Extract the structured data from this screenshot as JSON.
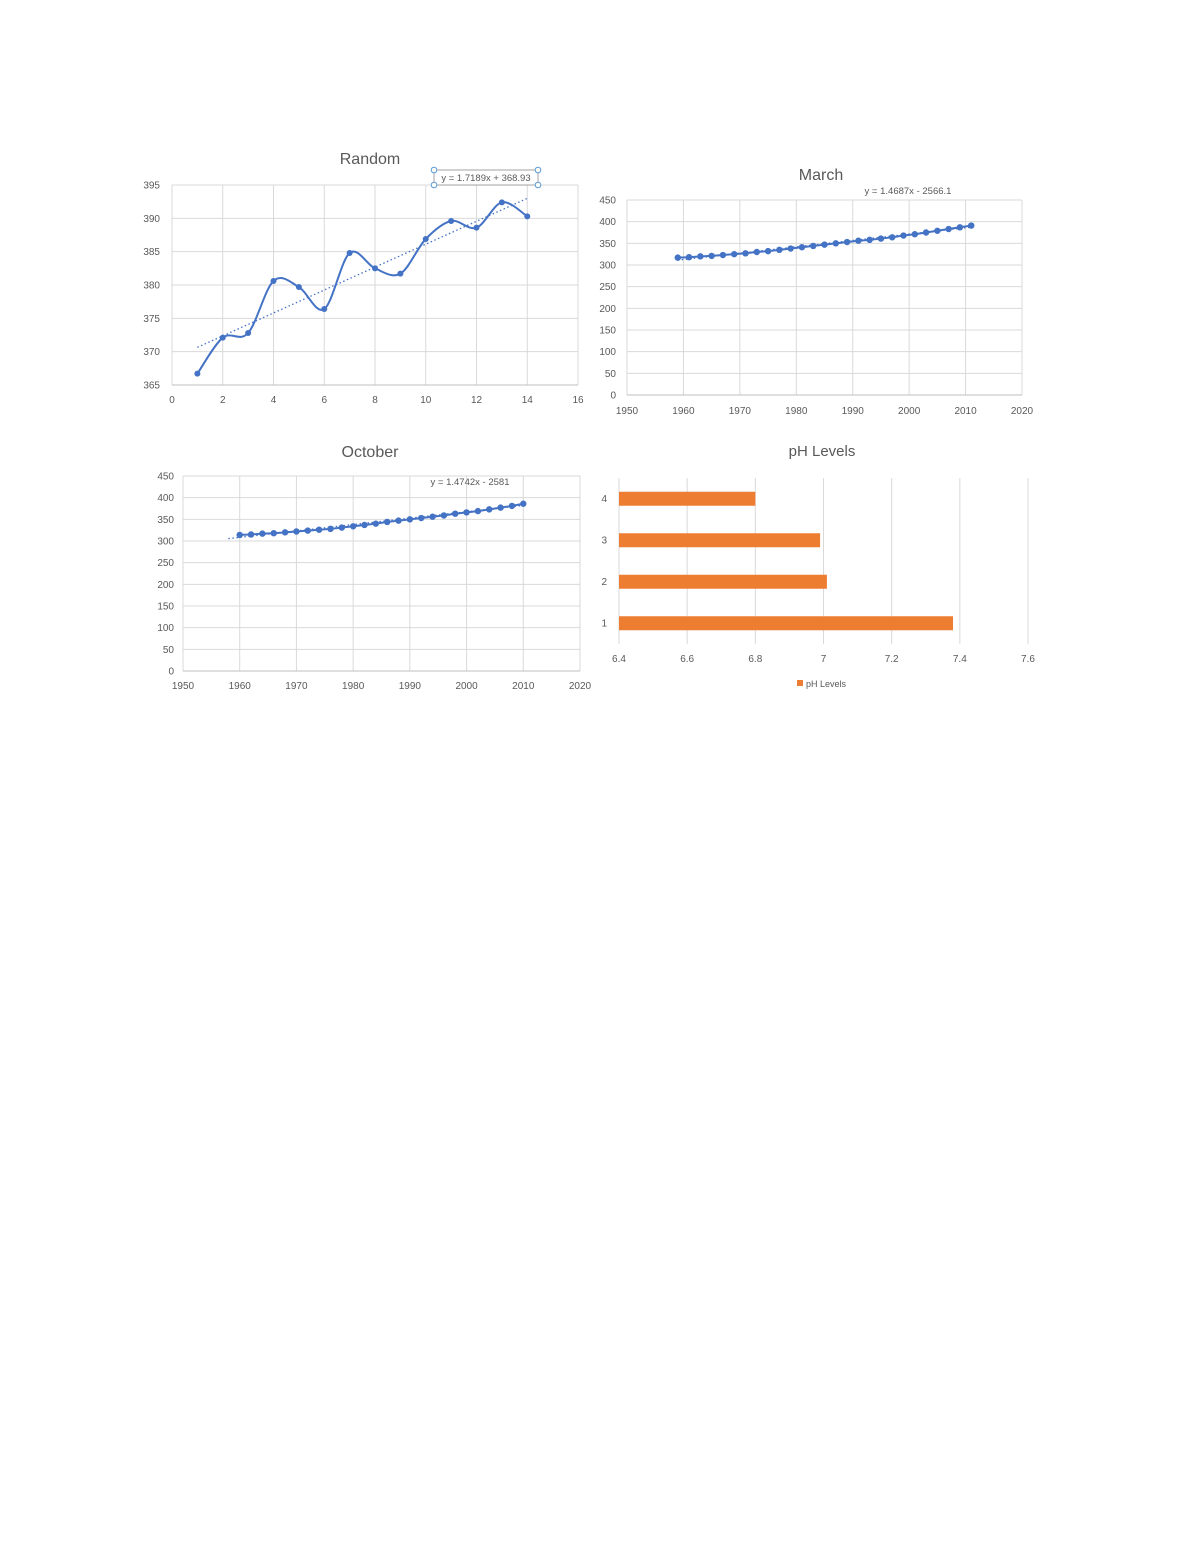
{
  "chart_data": [
    {
      "id": "random",
      "type": "line",
      "title": "Random",
      "xlabel": "",
      "ylabel": "",
      "xlim": [
        0,
        16
      ],
      "ylim": [
        365,
        395
      ],
      "x_ticks": [
        "0",
        "2",
        "4",
        "6",
        "8",
        "10",
        "12",
        "14",
        "16"
      ],
      "y_ticks": [
        "365",
        "370",
        "375",
        "380",
        "385",
        "390",
        "395"
      ],
      "grid": true,
      "smooth": true,
      "series": [
        {
          "x": [
            1,
            2,
            3,
            4,
            5,
            6,
            7,
            8,
            9,
            10,
            11,
            12,
            13,
            14
          ],
          "values": [
            366.7,
            372.1,
            372.8,
            380.6,
            379.7,
            376.4,
            384.8,
            382.5,
            381.7,
            386.9,
            389.6,
            388.6,
            392.4,
            390.3
          ]
        }
      ],
      "trendline": {
        "equation": "y = 1.7189x + 368.93",
        "slope": 1.7189,
        "intercept": 368.93,
        "x_range": [
          1,
          14
        ],
        "style": "dotted"
      },
      "colors": {
        "series": "#4472c4"
      }
    },
    {
      "id": "march",
      "type": "scatter",
      "title": "March",
      "xlabel": "",
      "ylabel": "",
      "xlim": [
        1950,
        2020
      ],
      "ylim": [
        0,
        450
      ],
      "x_ticks": [
        "1950",
        "1960",
        "1970",
        "1980",
        "1990",
        "2000",
        "2010",
        "2020"
      ],
      "y_ticks": [
        "0",
        "50",
        "100",
        "150",
        "200",
        "250",
        "300",
        "350",
        "400",
        "450"
      ],
      "grid": true,
      "series": [
        {
          "x": [
            1959,
            1961,
            1963,
            1965,
            1967,
            1969,
            1971,
            1973,
            1975,
            1977,
            1979,
            1981,
            1983,
            1985,
            1987,
            1989,
            1991,
            1993,
            1995,
            1997,
            1999,
            2001,
            2003,
            2005,
            2007,
            2009,
            2011
          ],
          "values": [
            317,
            318,
            320,
            321,
            323,
            325,
            327,
            330,
            332,
            335,
            338,
            341,
            344,
            347,
            350,
            353,
            356,
            358,
            361,
            364,
            368,
            371,
            375,
            379,
            383,
            387,
            391
          ]
        }
      ],
      "trendline": {
        "equation": "y = 1.4687x - 2566.1",
        "slope": 1.4687,
        "intercept": -2566.1,
        "x_range": [
          1959,
          2011
        ],
        "style": "dotted"
      },
      "colors": {
        "series": "#4472c4"
      }
    },
    {
      "id": "october",
      "type": "scatter",
      "title": "October",
      "xlabel": "",
      "ylabel": "",
      "xlim": [
        1950,
        2020
      ],
      "ylim": [
        0,
        450
      ],
      "x_ticks": [
        "1950",
        "1960",
        "1970",
        "1980",
        "1990",
        "2000",
        "2010",
        "2020"
      ],
      "y_ticks": [
        "0",
        "50",
        "100",
        "150",
        "200",
        "250",
        "300",
        "350",
        "400",
        "450"
      ],
      "grid": true,
      "series": [
        {
          "x": [
            1960,
            1962,
            1964,
            1966,
            1968,
            1970,
            1972,
            1974,
            1976,
            1978,
            1980,
            1982,
            1984,
            1986,
            1988,
            1990,
            1992,
            1994,
            1996,
            1998,
            2000,
            2002,
            2004,
            2006,
            2008,
            2010
          ],
          "values": [
            314,
            315,
            317,
            318,
            320,
            322,
            324,
            326,
            328,
            331,
            334,
            337,
            340,
            344,
            347,
            350,
            353,
            356,
            359,
            363,
            366,
            369,
            373,
            377,
            381,
            386
          ]
        }
      ],
      "trendline": {
        "equation": "y = 1.4742x - 2581",
        "slope": 1.4742,
        "intercept": -2581,
        "x_range": [
          1958,
          2010
        ],
        "style": "dotted"
      },
      "colors": {
        "series": "#4472c4"
      }
    },
    {
      "id": "ph",
      "type": "bar",
      "orientation": "horizontal",
      "title": "pH Levels",
      "xlabel": "",
      "ylabel": "",
      "categories": [
        "1",
        "2",
        "3",
        "4"
      ],
      "xlim": [
        6.4,
        7.6
      ],
      "x_ticks": [
        "6.4",
        "6.6",
        "6.8",
        "7",
        "7.2",
        "7.4",
        "7.6"
      ],
      "grid": true,
      "legend": "bottom",
      "series": [
        {
          "name": "pH Levels",
          "values": [
            7.38,
            7.01,
            6.99,
            6.8
          ]
        }
      ],
      "colors": {
        "series": "#ed7d31"
      }
    }
  ]
}
